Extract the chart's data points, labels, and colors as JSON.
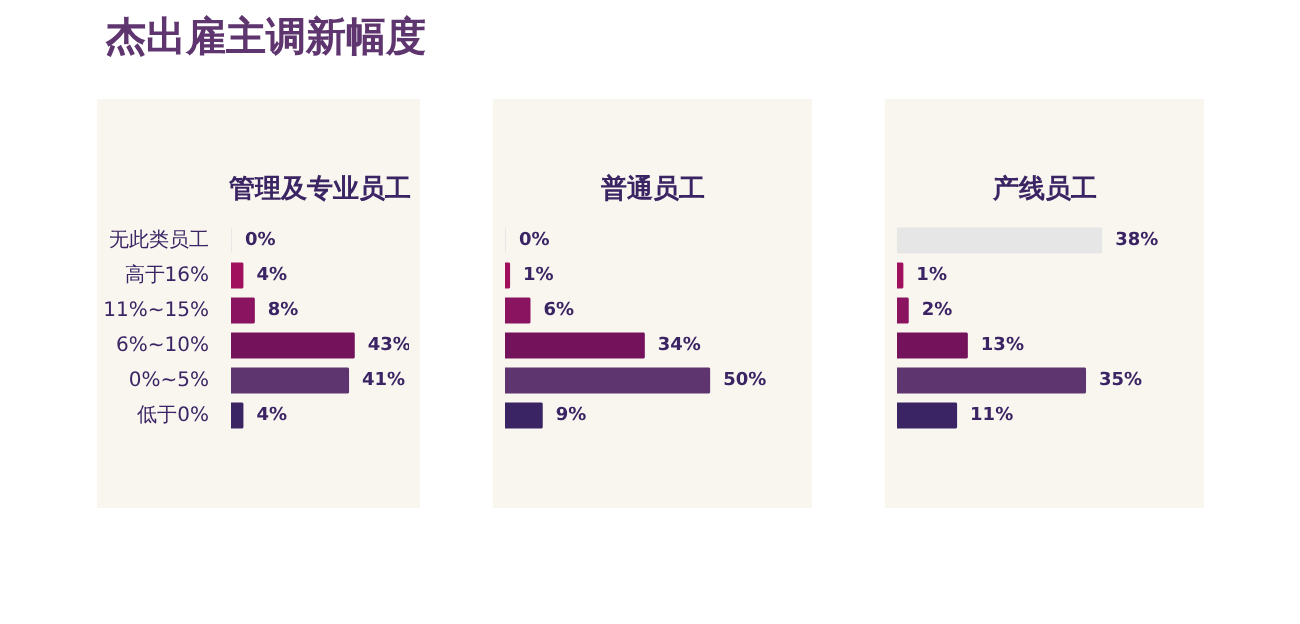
{
  "chart_data": [
    {
      "type": "other",
      "title": "杰出雇主调新幅度"
    },
    {
      "type": "bar",
      "orientation": "horizontal",
      "title": "管理及专业员工",
      "tick_labels": "y",
      "grid": false,
      "categories": [
        "无此类员工",
        "高于16%",
        "11%~15%",
        "6%~10%",
        "0%~5%",
        "低于0%"
      ],
      "values": [
        0,
        4,
        8,
        43,
        41,
        4
      ],
      "value_labels": [
        "0%",
        "4%",
        "8%",
        "43%",
        "41%",
        "4%"
      ],
      "colors": [
        "#e6e6e6",
        "#a0105c",
        "#8a1460",
        "#74125b",
        "#5e356e",
        "#3a2463"
      ]
    },
    {
      "type": "bar",
      "orientation": "horizontal",
      "title": "普通员工",
      "tick_labels": false,
      "grid": false,
      "categories": [
        null,
        null,
        null,
        null,
        null,
        null
      ],
      "values": [
        0,
        1,
        6,
        34,
        50,
        9
      ],
      "value_labels": [
        "0%",
        "1%",
        "6%",
        "34%",
        "50%",
        "9%"
      ],
      "colors": [
        "#e6e6e6",
        "#a0105c",
        "#8a1460",
        "#74125b",
        "#5e356e",
        "#3a2463"
      ]
    },
    {
      "type": "bar",
      "orientation": "horizontal",
      "title": "产线员工",
      "tick_labels": false,
      "grid": false,
      "categories": [
        null,
        null,
        null,
        null,
        null,
        null
      ],
      "values": [
        38,
        1,
        2,
        13,
        35,
        11
      ],
      "value_labels": [
        "38%",
        "1%",
        "2%",
        "13%",
        "35%",
        "11%"
      ],
      "colors": [
        "#e6e6e6",
        "#a0105c",
        "#8a1460",
        "#74125b",
        "#5e356e",
        "#3a2463"
      ]
    }
  ]
}
